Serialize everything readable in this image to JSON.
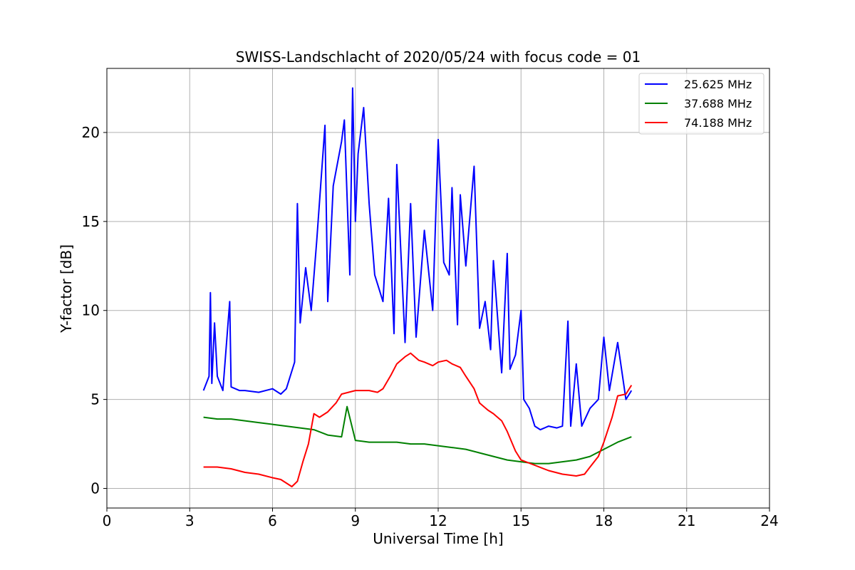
{
  "chart_data": {
    "type": "line",
    "title": "SWISS-Landschlacht of 2020/05/24 with focus code = 01",
    "xlabel": "Universal Time [h]",
    "ylabel": "Y-factor [dB]",
    "xlim": [
      0,
      24
    ],
    "ylim": [
      -1.1,
      23.6
    ],
    "xticks": [
      0,
      3,
      6,
      9,
      12,
      15,
      18,
      21,
      24
    ],
    "xtick_labels": [
      "0",
      "3",
      "6",
      "9",
      "12",
      "15",
      "18",
      "21",
      "24"
    ],
    "yticks": [
      0,
      5,
      10,
      15,
      20
    ],
    "ytick_labels": [
      "0",
      "5",
      "10",
      "15",
      "20"
    ],
    "grid": true,
    "legend_position": "top-right",
    "series": [
      {
        "name": "25.625 MHz",
        "color": "#0000ff",
        "x": [
          3.5,
          3.7,
          3.75,
          3.8,
          3.9,
          4.0,
          4.2,
          4.45,
          4.5,
          4.8,
          5.0,
          5.5,
          6.0,
          6.3,
          6.5,
          6.8,
          6.9,
          7.0,
          7.2,
          7.4,
          7.6,
          7.9,
          8.0,
          8.2,
          8.5,
          8.6,
          8.8,
          8.9,
          9.0,
          9.1,
          9.3,
          9.5,
          9.7,
          10.0,
          10.2,
          10.4,
          10.5,
          10.8,
          11.0,
          11.2,
          11.5,
          11.8,
          12.0,
          12.2,
          12.4,
          12.5,
          12.7,
          12.8,
          13.0,
          13.3,
          13.5,
          13.7,
          13.9,
          14.0,
          14.3,
          14.5,
          14.6,
          14.8,
          15.0,
          15.1,
          15.3,
          15.5,
          15.7,
          16.0,
          16.3,
          16.5,
          16.7,
          16.8,
          17.0,
          17.2,
          17.5,
          17.8,
          18.0,
          18.2,
          18.5,
          18.8,
          19.0
        ],
        "y": [
          5.5,
          6.3,
          11.0,
          5.9,
          9.3,
          6.3,
          5.5,
          10.5,
          5.7,
          5.5,
          5.5,
          5.4,
          5.6,
          5.3,
          5.6,
          7.1,
          16.0,
          9.3,
          12.4,
          10.0,
          13.9,
          20.4,
          10.5,
          17.0,
          19.5,
          20.7,
          12.0,
          22.5,
          15.0,
          18.8,
          21.4,
          16.0,
          12.0,
          10.5,
          16.3,
          8.7,
          18.2,
          8.2,
          16.0,
          8.5,
          14.5,
          10.0,
          19.6,
          12.7,
          12.0,
          16.9,
          9.2,
          16.5,
          12.5,
          18.1,
          9.0,
          10.5,
          7.8,
          12.8,
          6.5,
          13.2,
          6.7,
          7.5,
          10.0,
          5.0,
          4.5,
          3.5,
          3.3,
          3.5,
          3.4,
          3.5,
          9.4,
          3.5,
          7.0,
          3.5,
          4.5,
          5.0,
          8.5,
          5.5,
          8.2,
          5.0,
          5.5
        ]
      },
      {
        "name": "37.688 MHz",
        "color": "#008000",
        "x": [
          3.5,
          4.0,
          4.5,
          5.0,
          5.5,
          6.0,
          6.5,
          7.0,
          7.5,
          8.0,
          8.5,
          8.7,
          9.0,
          9.5,
          10.0,
          10.5,
          11.0,
          11.5,
          12.0,
          12.5,
          13.0,
          13.5,
          14.0,
          14.5,
          15.0,
          15.5,
          16.0,
          16.5,
          17.0,
          17.5,
          18.0,
          18.5,
          19.0
        ],
        "y": [
          4.0,
          3.9,
          3.9,
          3.8,
          3.7,
          3.6,
          3.5,
          3.4,
          3.3,
          3.0,
          2.9,
          4.6,
          2.7,
          2.6,
          2.6,
          2.6,
          2.5,
          2.5,
          2.4,
          2.3,
          2.2,
          2.0,
          1.8,
          1.6,
          1.5,
          1.4,
          1.4,
          1.5,
          1.6,
          1.8,
          2.2,
          2.6,
          2.9
        ]
      },
      {
        "name": "74.188 MHz",
        "color": "#ff0000",
        "x": [
          3.5,
          3.8,
          4.0,
          4.5,
          5.0,
          5.5,
          6.0,
          6.3,
          6.5,
          6.7,
          6.9,
          7.1,
          7.3,
          7.5,
          7.7,
          8.0,
          8.3,
          8.5,
          9.0,
          9.5,
          9.8,
          10.0,
          10.3,
          10.5,
          10.8,
          11.0,
          11.3,
          11.5,
          11.8,
          12.0,
          12.3,
          12.5,
          12.8,
          13.0,
          13.3,
          13.5,
          13.8,
          14.0,
          14.3,
          14.5,
          14.8,
          15.0,
          15.5,
          16.0,
          16.5,
          17.0,
          17.3,
          17.5,
          17.8,
          18.0,
          18.3,
          18.5,
          18.8,
          19.0
        ],
        "y": [
          1.2,
          1.2,
          1.2,
          1.1,
          0.9,
          0.8,
          0.6,
          0.5,
          0.3,
          0.1,
          0.4,
          1.5,
          2.5,
          4.2,
          4.0,
          4.3,
          4.8,
          5.3,
          5.5,
          5.5,
          5.4,
          5.6,
          6.4,
          7.0,
          7.4,
          7.6,
          7.2,
          7.1,
          6.9,
          7.1,
          7.2,
          7.0,
          6.8,
          6.3,
          5.6,
          4.8,
          4.4,
          4.2,
          3.8,
          3.2,
          2.1,
          1.6,
          1.3,
          1.0,
          0.8,
          0.7,
          0.8,
          1.2,
          1.8,
          2.6,
          4.0,
          5.2,
          5.3,
          5.8
        ]
      }
    ]
  }
}
